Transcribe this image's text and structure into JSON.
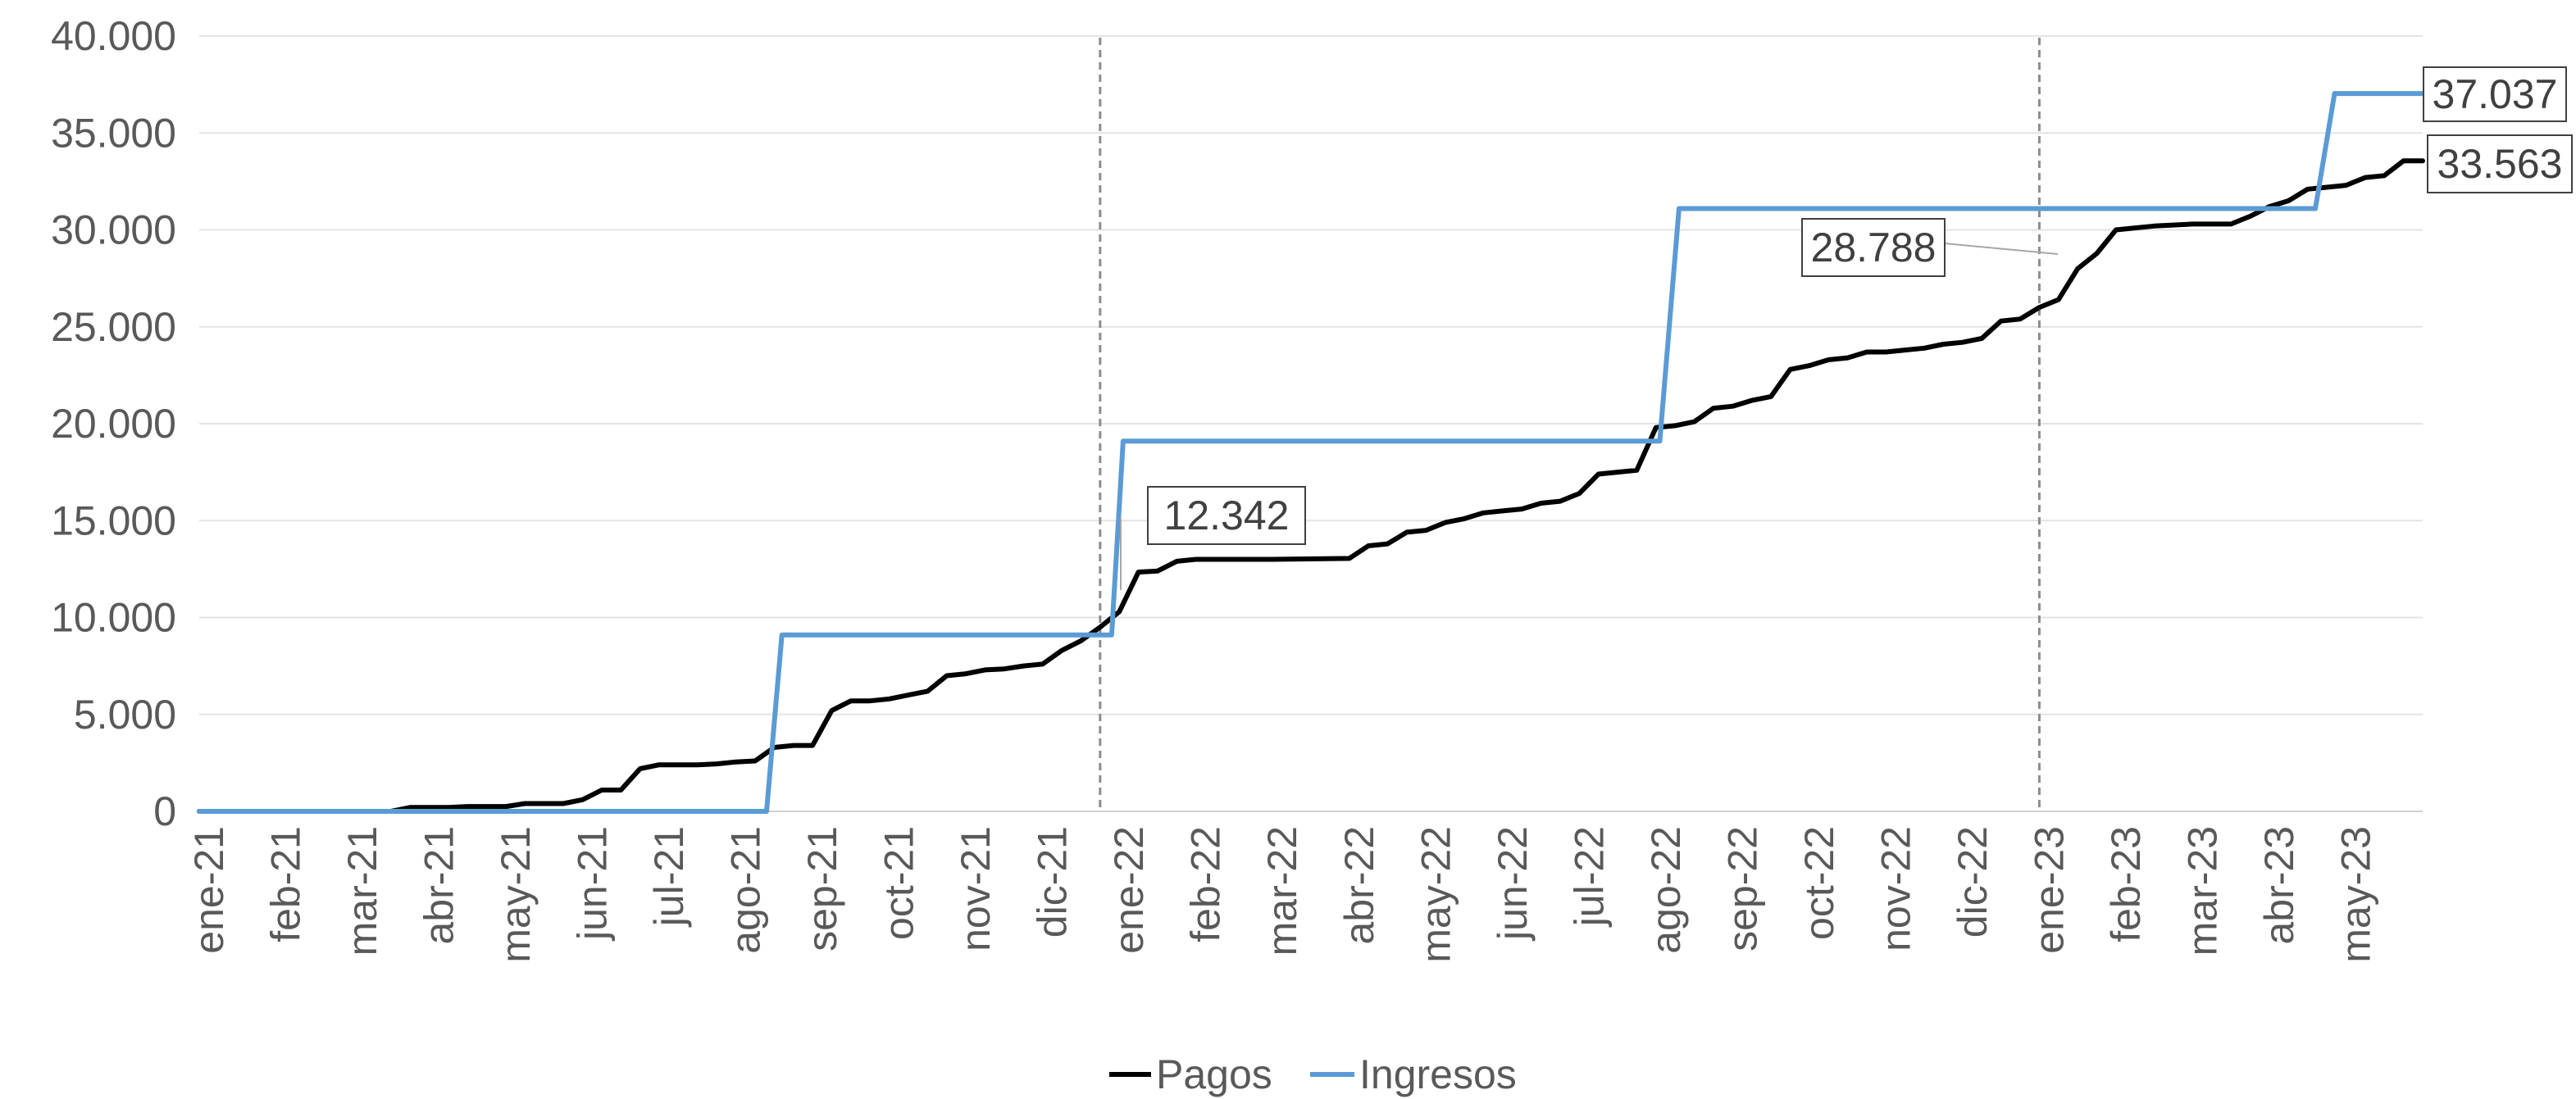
{
  "chart_data": {
    "type": "line",
    "title": "",
    "xlabel": "",
    "ylabel": "",
    "ylim": [
      0,
      40000
    ],
    "y_ticks": [
      0,
      5000,
      10000,
      15000,
      20000,
      25000,
      30000,
      35000,
      40000
    ],
    "y_tick_labels": [
      "0",
      "5.000",
      "10.000",
      "15.000",
      "20.000",
      "25.000",
      "30.000",
      "35.000",
      "40.000"
    ],
    "x_range_months": [
      0,
      28.5
    ],
    "x_tick_labels": [
      "ene-21",
      "feb-21",
      "mar-21",
      "abr-21",
      "may-21",
      "jun-21",
      "jul-21",
      "ago-21",
      "sep-21",
      "oct-21",
      "nov-21",
      "dic-21",
      "ene-22",
      "feb-22",
      "mar-22",
      "abr-22",
      "may-22",
      "jun-22",
      "jul-22",
      "ago-22",
      "sep-22",
      "oct-22",
      "nov-22",
      "dic-22",
      "ene-23",
      "feb-23",
      "mar-23",
      "abr-23",
      "may-23"
    ],
    "grid": "horizontal",
    "legend_position": "bottom",
    "reference_lines_x": [
      11.75,
      24.0
    ],
    "series": [
      {
        "name": "Pagos",
        "color": "#000000",
        "points": [
          [
            0,
            0
          ],
          [
            1,
            0
          ],
          [
            2,
            0
          ],
          [
            2.5,
            0
          ],
          [
            2.75,
            200
          ],
          [
            3,
            200
          ],
          [
            3.25,
            200
          ],
          [
            3.5,
            250
          ],
          [
            3.75,
            250
          ],
          [
            4,
            250
          ],
          [
            4.25,
            400
          ],
          [
            4.5,
            400
          ],
          [
            4.75,
            400
          ],
          [
            5,
            600
          ],
          [
            5.25,
            1100
          ],
          [
            5.5,
            1100
          ],
          [
            5.75,
            2200
          ],
          [
            6,
            2400
          ],
          [
            6.25,
            2400
          ],
          [
            6.5,
            2400
          ],
          [
            6.75,
            2450
          ],
          [
            7,
            2550
          ],
          [
            7.25,
            2600
          ],
          [
            7.5,
            3300
          ],
          [
            7.75,
            3400
          ],
          [
            8,
            3400
          ],
          [
            8.25,
            5200
          ],
          [
            8.5,
            5700
          ],
          [
            8.75,
            5700
          ],
          [
            9,
            5800
          ],
          [
            9.25,
            6000
          ],
          [
            9.5,
            6200
          ],
          [
            9.75,
            7000
          ],
          [
            10,
            7100
          ],
          [
            10.25,
            7300
          ],
          [
            10.5,
            7350
          ],
          [
            10.75,
            7500
          ],
          [
            11,
            7600
          ],
          [
            11.25,
            8300
          ],
          [
            11.5,
            8800
          ],
          [
            11.75,
            9500
          ],
          [
            12,
            10300
          ],
          [
            12.25,
            12342
          ],
          [
            12.5,
            12400
          ],
          [
            12.75,
            12900
          ],
          [
            13,
            13000
          ],
          [
            14,
            13000
          ],
          [
            15,
            13050
          ],
          [
            15.25,
            13700
          ],
          [
            15.5,
            13800
          ],
          [
            15.75,
            14400
          ],
          [
            16,
            14500
          ],
          [
            16.25,
            14900
          ],
          [
            16.5,
            15100
          ],
          [
            16.75,
            15400
          ],
          [
            17,
            15500
          ],
          [
            17.25,
            15600
          ],
          [
            17.5,
            15900
          ],
          [
            17.75,
            16000
          ],
          [
            18,
            16400
          ],
          [
            18.25,
            17400
          ],
          [
            18.5,
            17500
          ],
          [
            18.75,
            17600
          ],
          [
            19,
            19800
          ],
          [
            19.25,
            19900
          ],
          [
            19.5,
            20100
          ],
          [
            19.75,
            20800
          ],
          [
            20,
            20900
          ],
          [
            20.25,
            21200
          ],
          [
            20.5,
            21400
          ],
          [
            20.75,
            22800
          ],
          [
            21,
            23000
          ],
          [
            21.25,
            23300
          ],
          [
            21.5,
            23400
          ],
          [
            21.75,
            23700
          ],
          [
            22,
            23700
          ],
          [
            22.25,
            23800
          ],
          [
            22.5,
            23900
          ],
          [
            22.75,
            24100
          ],
          [
            23,
            24200
          ],
          [
            23.25,
            24400
          ],
          [
            23.5,
            25300
          ],
          [
            23.75,
            25400
          ],
          [
            24,
            26000
          ],
          [
            24.25,
            26400
          ],
          [
            24.5,
            28000
          ],
          [
            24.75,
            28788
          ],
          [
            25,
            30000
          ],
          [
            25.25,
            30100
          ],
          [
            25.5,
            30200
          ],
          [
            26,
            30300
          ],
          [
            26.5,
            30300
          ],
          [
            26.75,
            30700
          ],
          [
            27,
            31200
          ],
          [
            27.25,
            31500
          ],
          [
            27.5,
            32100
          ],
          [
            27.75,
            32200
          ],
          [
            28,
            32300
          ],
          [
            28.25,
            32700
          ],
          [
            28.5,
            32800
          ],
          [
            28.75,
            33563
          ],
          [
            29,
            33563
          ]
        ]
      },
      {
        "name": "Ingresos",
        "color": "#5B9BD5",
        "points": [
          [
            0,
            0
          ],
          [
            7.4,
            0
          ],
          [
            7.6,
            9100
          ],
          [
            11.9,
            9100
          ],
          [
            12.05,
            19100
          ],
          [
            19.05,
            19100
          ],
          [
            19.3,
            31100
          ],
          [
            27.6,
            31100
          ],
          [
            27.85,
            37037
          ],
          [
            29,
            37037
          ]
        ]
      }
    ],
    "annotations": [
      {
        "text": "12.342",
        "series": "Pagos",
        "x": 12.25,
        "y": 12342
      },
      {
        "text": "28.788",
        "series": "Pagos",
        "x": 24.75,
        "y": 28788
      },
      {
        "text": "37.037",
        "series": "Ingresos",
        "x": 29,
        "y": 37037
      },
      {
        "text": "33.563",
        "series": "Pagos",
        "x": 29,
        "y": 33563
      }
    ]
  }
}
